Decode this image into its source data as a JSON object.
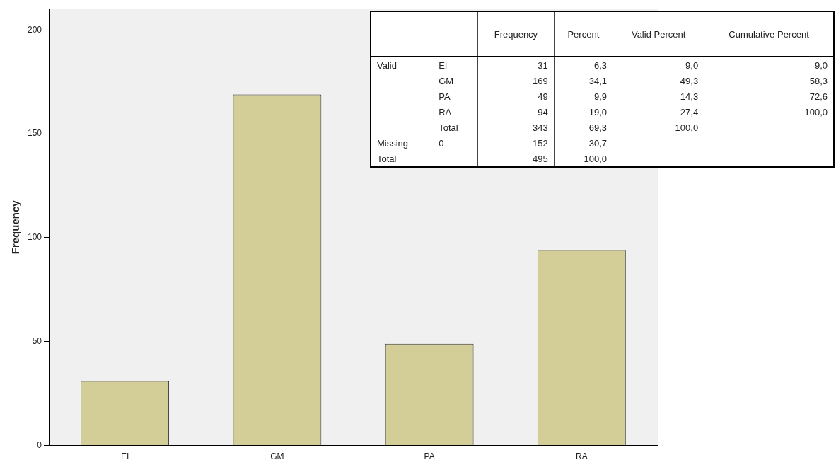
{
  "chart_data": [
    {
      "type": "bar",
      "ylabel": "Frequency",
      "categories": [
        "EI",
        "GM",
        "PA",
        "RA"
      ],
      "values": [
        31,
        169,
        49,
        94
      ],
      "color": "#d3ce97",
      "ylim": [
        0,
        210
      ],
      "yticks": [
        0,
        50,
        100,
        150,
        200
      ],
      "grid": false,
      "legend": false
    },
    {
      "type": "other",
      "categories": [
        null,
        null,
        "Frequency",
        "Percent",
        "Valid Percent",
        "Cumulative Percent"
      ],
      "cell_labels": [
        [
          "Valid",
          "EI",
          "31",
          "6,3",
          "9,0",
          "9,0"
        ],
        [
          null,
          "GM",
          "169",
          "34,1",
          "49,3",
          "58,3"
        ],
        [
          null,
          "PA",
          "49",
          "9,9",
          "14,3",
          "72,6"
        ],
        [
          null,
          "RA",
          "94",
          "19,0",
          "27,4",
          "100,0"
        ],
        [
          null,
          "Total",
          "343",
          "69,3",
          "100,0",
          null
        ],
        [
          "Missing",
          "0",
          "152",
          "30,7",
          null,
          null
        ],
        [
          "Total",
          null,
          "495",
          "100,0",
          null,
          null
        ]
      ]
    }
  ]
}
